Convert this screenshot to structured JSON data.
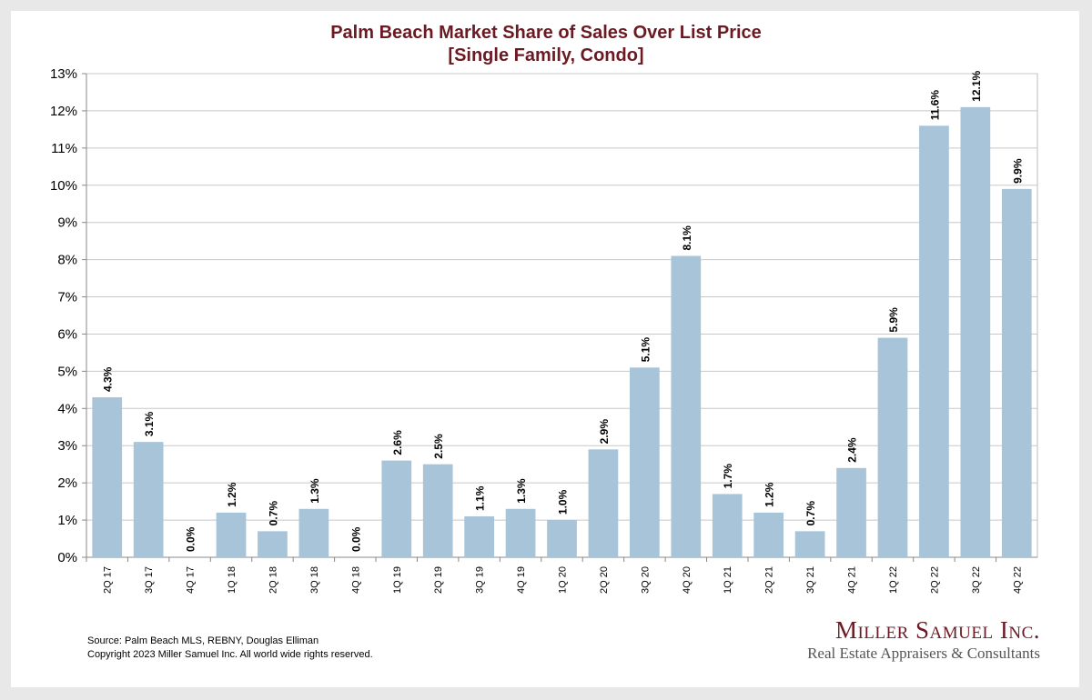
{
  "chart_data": {
    "type": "bar",
    "title": "Palm Beach Market Share of Sales Over List Price",
    "subtitle": "[Single Family, Condo]",
    "xlabel": "",
    "ylabel": "",
    "ylim": [
      0,
      13
    ],
    "yticks": [
      "0%",
      "1%",
      "2%",
      "3%",
      "4%",
      "5%",
      "6%",
      "7%",
      "8%",
      "9%",
      "10%",
      "11%",
      "12%",
      "13%"
    ],
    "grid": true,
    "bar_color": "#a8c4d8",
    "categories": [
      "2Q 17",
      "3Q 17",
      "4Q 17",
      "1Q 18",
      "2Q 18",
      "3Q 18",
      "4Q 18",
      "1Q 19",
      "2Q 19",
      "3Q 19",
      "4Q 19",
      "1Q 20",
      "2Q 20",
      "3Q 20",
      "4Q 20",
      "1Q 21",
      "2Q 21",
      "3Q 21",
      "4Q 21",
      "1Q 22",
      "2Q 22",
      "3Q 22",
      "4Q 22"
    ],
    "values": [
      4.3,
      3.1,
      0.0,
      1.2,
      0.7,
      1.3,
      0.0,
      2.6,
      2.5,
      1.1,
      1.3,
      1.0,
      2.9,
      5.1,
      8.1,
      1.7,
      1.2,
      0.7,
      2.4,
      5.9,
      11.6,
      12.1,
      9.9
    ],
    "data_labels": [
      "4.3%",
      "3.1%",
      "0.0%",
      "1.2%",
      "0.7%",
      "1.3%",
      "0.0%",
      "2.6%",
      "2.5%",
      "1.1%",
      "1.3%",
      "1.0%",
      "2.9%",
      "5.1%",
      "8.1%",
      "1.7%",
      "1.2%",
      "0.7%",
      "2.4%",
      "5.9%",
      "11.6%",
      "12.1%",
      "9.9%"
    ]
  },
  "footer": {
    "source": "Source: Palm Beach MLS, REBNY, Douglas Elliman",
    "copyright": "Copyright 2023 Miller Samuel Inc.  All world wide rights reserved."
  },
  "brand": {
    "name": "Miller Samuel Inc.",
    "tagline": "Real Estate Appraisers & Consultants"
  },
  "colors": {
    "title": "#6b1a23",
    "bar": "#a8c4d8",
    "grid": "#c8c8c8"
  }
}
